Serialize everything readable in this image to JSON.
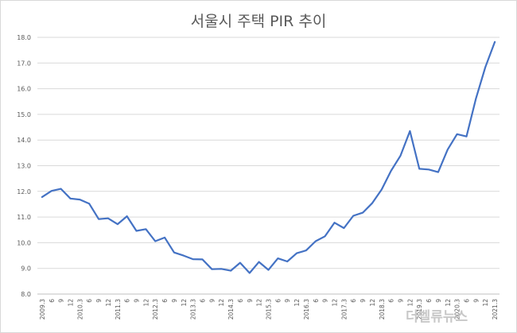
{
  "chart_data": {
    "type": "line",
    "title": "서울시 주택 PIR 추이",
    "xlabel": "",
    "ylabel": "",
    "ylim": [
      8.0,
      18.0
    ],
    "yticks": [
      "18.0",
      "17.0",
      "16.0",
      "15.0",
      "14.0",
      "13.0",
      "12.0",
      "11.0",
      "10.0",
      "9.0",
      "8.0"
    ],
    "x": [
      "2009.3",
      "6",
      "9",
      "12",
      "2010.3",
      "6",
      "9",
      "12",
      "2011.3",
      "6",
      "9",
      "12",
      "2012.3",
      "6",
      "9",
      "12",
      "2013.3",
      "6",
      "9",
      "12",
      "2014.3",
      "6",
      "9",
      "12",
      "2015.3",
      "6",
      "9",
      "12",
      "2016.3",
      "6",
      "9",
      "12",
      "2017.3",
      "6",
      "9",
      "12",
      "2018.3",
      "6",
      "9",
      "12",
      "2019.3",
      "6",
      "9",
      "12",
      "2020.3",
      "6",
      "9",
      "12",
      "2021.3"
    ],
    "series": [
      {
        "values": [
          11.78,
          12.02,
          12.1,
          11.72,
          11.68,
          11.52,
          10.92,
          10.95,
          10.72,
          11.03,
          10.46,
          10.53,
          10.06,
          10.2,
          9.62,
          9.5,
          9.36,
          9.35,
          8.97,
          8.98,
          8.91,
          9.22,
          8.82,
          9.25,
          8.94,
          9.39,
          9.27,
          9.59,
          9.7,
          10.06,
          10.25,
          10.78,
          10.57,
          11.05,
          11.17,
          11.54,
          12.07,
          12.8,
          13.39,
          14.35,
          12.88,
          12.85,
          12.75,
          13.63,
          14.23,
          14.14,
          15.62,
          16.84,
          17.82
        ]
      }
    ],
    "grid": true,
    "legend": "none",
    "line_color": "#4472c4"
  },
  "watermark": "더벨류뉴스"
}
